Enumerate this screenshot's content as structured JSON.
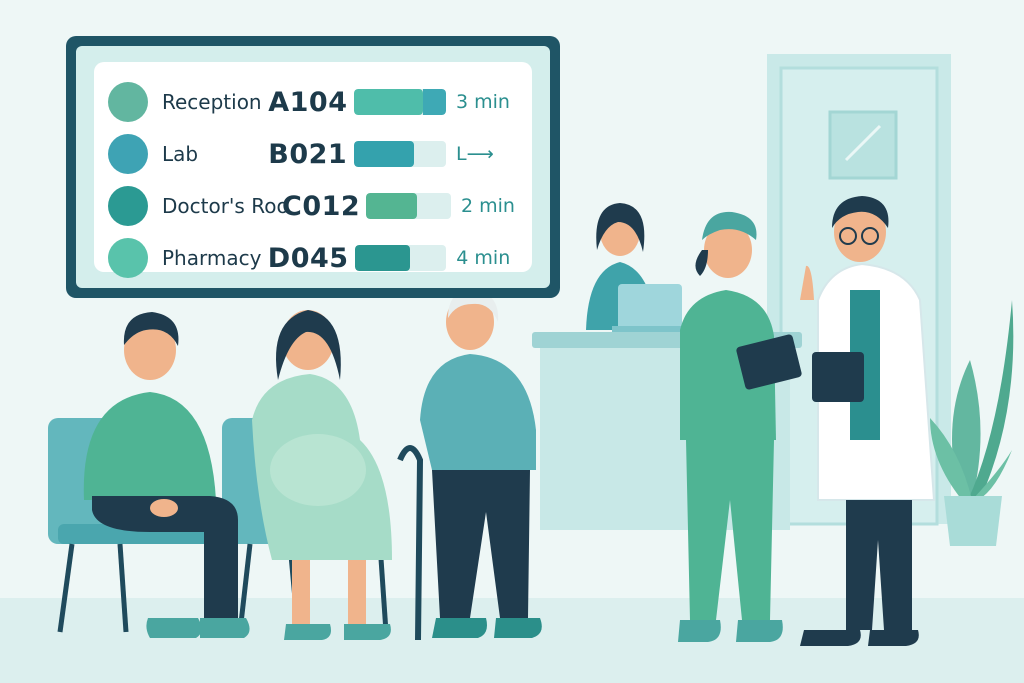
{
  "queue_board": {
    "rows": [
      {
        "department": "Reception",
        "ticket": "A104",
        "progress": 0.75,
        "fill_color": "#4fbdaa",
        "fill_color_2": "#3ea9b5",
        "dot_color": "#62b6a0",
        "eta": "3 min"
      },
      {
        "department": "Lab",
        "ticket": "B021",
        "progress": 0.65,
        "fill_color": "#34a2ad",
        "dot_color": "#3ea3b4",
        "eta": "L⟶"
      },
      {
        "department": "Doctor's Roo",
        "ticket": "C012",
        "progress": 0.6,
        "fill_color": "#54b592",
        "dot_color": "#2b9a93",
        "eta": "2 min"
      },
      {
        "department": "Pharmacy",
        "ticket": "D045",
        "progress": 0.6,
        "fill_color": "#2b9690",
        "dot_color": "#59c3ab",
        "eta": "4 min"
      }
    ]
  },
  "colors": {
    "background": "#eef7f6",
    "board_frame": "#1f5566",
    "scrubs": "#4fb494",
    "navy": "#1d3a4a"
  }
}
